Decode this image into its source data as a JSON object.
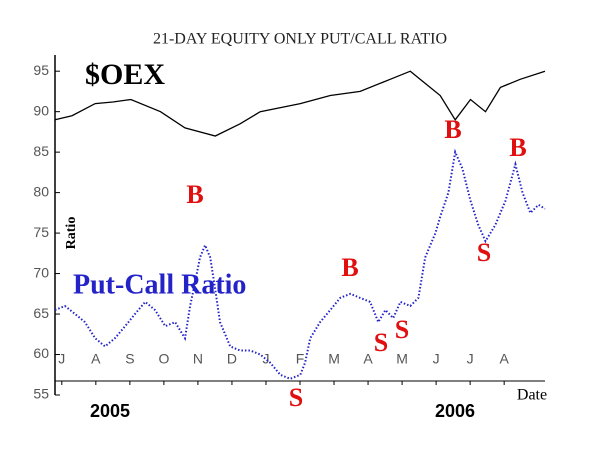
{
  "chart_data": {
    "type": "line",
    "title": "21-DAY EQUITY ONLY PUT/CALL RATIO",
    "y_label": "Ratio",
    "x_label": "Date",
    "years": [
      "2005",
      "2006"
    ],
    "xlim": [
      -0.2,
      14.2
    ],
    "xticks": [
      {
        "value": 0,
        "label": "J"
      },
      {
        "value": 1,
        "label": "A"
      },
      {
        "value": 2,
        "label": "S"
      },
      {
        "value": 3,
        "label": "O"
      },
      {
        "value": 4,
        "label": "N"
      },
      {
        "value": 5,
        "label": "D"
      },
      {
        "value": 6,
        "label": "J"
      },
      {
        "value": 7,
        "label": "F"
      },
      {
        "value": 8,
        "label": "M"
      },
      {
        "value": 9,
        "label": "A"
      },
      {
        "value": 10,
        "label": "M"
      },
      {
        "value": 11,
        "label": "J"
      },
      {
        "value": 12,
        "label": "J"
      },
      {
        "value": 13,
        "label": "A"
      }
    ],
    "ylim": [
      55,
      97
    ],
    "yticks": [
      55,
      60,
      65,
      70,
      75,
      80,
      85,
      90,
      95
    ],
    "series": [
      {
        "name": "$OEX",
        "color": "#000000",
        "dotted": false,
        "x": [
          -0.2,
          0.3,
          0.98,
          1.5,
          2.03,
          2.9,
          3.62,
          4.51,
          5.24,
          5.83,
          7.01,
          7.89,
          8.77,
          9.65,
          10.24,
          10.53,
          11.12,
          11.56,
          12.01,
          12.45,
          12.89,
          13.47,
          14.2
        ],
        "values": [
          89,
          89.5,
          91,
          91.2,
          91.5,
          90,
          88,
          87,
          88.5,
          90,
          91,
          92,
          92.5,
          94,
          95,
          94,
          92,
          89,
          91.5,
          90,
          93,
          94,
          95
        ]
      },
      {
        "name": "Put-Call Ratio",
        "color": "#2323c8",
        "dotted": true,
        "x": [
          -0.2,
          0.09,
          0.39,
          0.68,
          0.98,
          1.27,
          1.56,
          1.86,
          2.15,
          2.45,
          2.74,
          3.04,
          3.33,
          3.62,
          3.77,
          3.92,
          4.06,
          4.21,
          4.36,
          4.51,
          4.65,
          4.95,
          5.24,
          5.54,
          5.83,
          6.12,
          6.42,
          6.71,
          7.01,
          7.15,
          7.3,
          7.59,
          7.89,
          8.18,
          8.48,
          8.77,
          9.06,
          9.3,
          9.51,
          9.74,
          9.95,
          10.24,
          10.48,
          10.68,
          10.98,
          11.12,
          11.36,
          11.56,
          11.77,
          12.01,
          12.24,
          12.45,
          12.74,
          13.04,
          13.33,
          13.54,
          13.77,
          14.01,
          14.2
        ],
        "values": [
          65.5,
          66,
          65,
          64,
          62,
          61,
          62,
          63.5,
          65,
          66.5,
          65.5,
          63.5,
          64,
          62,
          66,
          69,
          72,
          73.5,
          72,
          68,
          64,
          61,
          60.5,
          60.5,
          60,
          59,
          57.5,
          57,
          57.5,
          59,
          62,
          64,
          65.5,
          67,
          67.5,
          67,
          66.5,
          64,
          65.5,
          64.5,
          66.5,
          66,
          67,
          72,
          75,
          77,
          80,
          85,
          83,
          79,
          76,
          74,
          76,
          79,
          83.5,
          80,
          77.5,
          78.5,
          78
        ]
      }
    ],
    "annotations": [
      "B",
      "B",
      "S",
      "S",
      "S",
      "B",
      "S",
      "B"
    ]
  }
}
